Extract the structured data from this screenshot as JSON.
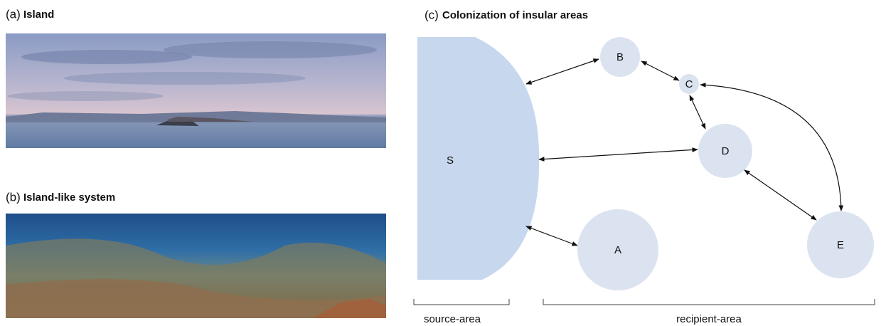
{
  "panels": [
    {
      "label": "(a)",
      "title": "Island"
    },
    {
      "label": "(b)",
      "title": "Island-like system"
    },
    {
      "label": "(c)",
      "title": "Colonization of insular areas"
    }
  ],
  "nodes": [
    {
      "label": "S"
    },
    {
      "label": "B"
    },
    {
      "label": "C"
    },
    {
      "label": "D"
    },
    {
      "label": "A"
    },
    {
      "label": "E"
    }
  ],
  "brackets": [
    {
      "label": "source-area"
    },
    {
      "label": "recipient-area"
    }
  ]
}
